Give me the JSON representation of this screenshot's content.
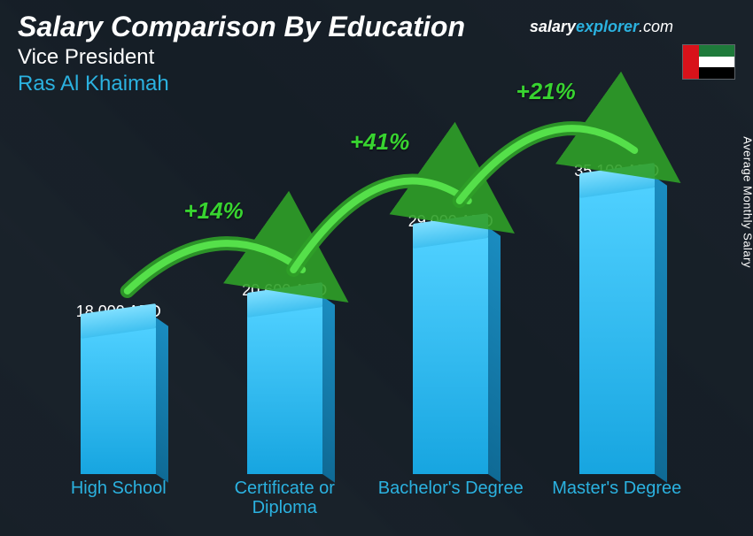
{
  "header": {
    "title": "Salary Comparison By Education",
    "subtitle": "Vice President",
    "location": "Ras Al Khaimah",
    "location_color": "#2bb2e0"
  },
  "watermark": {
    "part1": "salary",
    "part2": "explorer",
    "part3": ".com"
  },
  "flag": {
    "colors": [
      "#1e7a3a",
      "#ffffff",
      "#000000"
    ],
    "hoist_color": "#d8121a"
  },
  "ylabel": "Average Monthly Salary",
  "chart": {
    "type": "bar-3d",
    "currency": "AED",
    "bar_colors": {
      "face": "#17a5e0",
      "top": "#7fdfff",
      "side": "#0f6a95"
    },
    "label_color": "#2bb2e0",
    "label_fontsize": 20,
    "value_color": "#ffffff",
    "value_fontsize": 18,
    "max_value": 35100,
    "bars": [
      {
        "category": "High School",
        "value": 18000,
        "display": "18,000 AED"
      },
      {
        "category": "Certificate or Diploma",
        "value": 20600,
        "display": "20,600 AED"
      },
      {
        "category": "Bachelor's Degree",
        "value": 29000,
        "display": "29,000 AED"
      },
      {
        "category": "Master's Degree",
        "value": 35100,
        "display": "35,100 AED"
      }
    ],
    "increments": [
      {
        "label": "+14%",
        "color": "#38d430"
      },
      {
        "label": "+41%",
        "color": "#38d430"
      },
      {
        "label": "+21%",
        "color": "#38d430"
      }
    ]
  },
  "background": {
    "overlay_color": "rgba(20,30,40,0.85)"
  }
}
